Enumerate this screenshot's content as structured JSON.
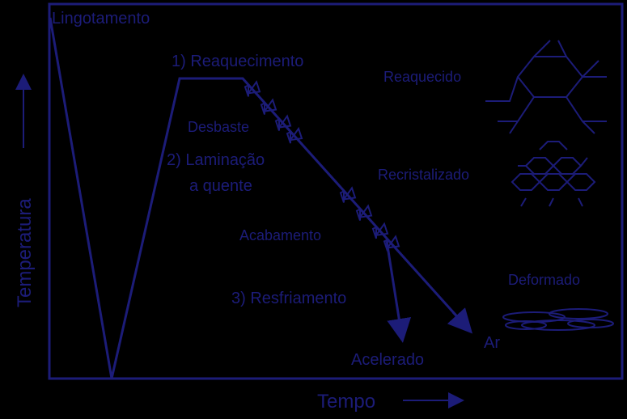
{
  "labels": {
    "casting": "Lingotamento",
    "reheating": "1) Reaquecimento",
    "reheated": "Reaquecido",
    "roughing": "Desbaste",
    "rolling_1": "2) Laminação",
    "rolling_2": "a quente",
    "recrystallized": "Recristalizado",
    "finishing": "Acabamento",
    "deformed": "Deformado",
    "cooling": "3) Resfriamento",
    "air": "Ar",
    "accelerated": "Acelerado",
    "x_axis": "Tempo",
    "y_axis": "Temperatura"
  }
}
